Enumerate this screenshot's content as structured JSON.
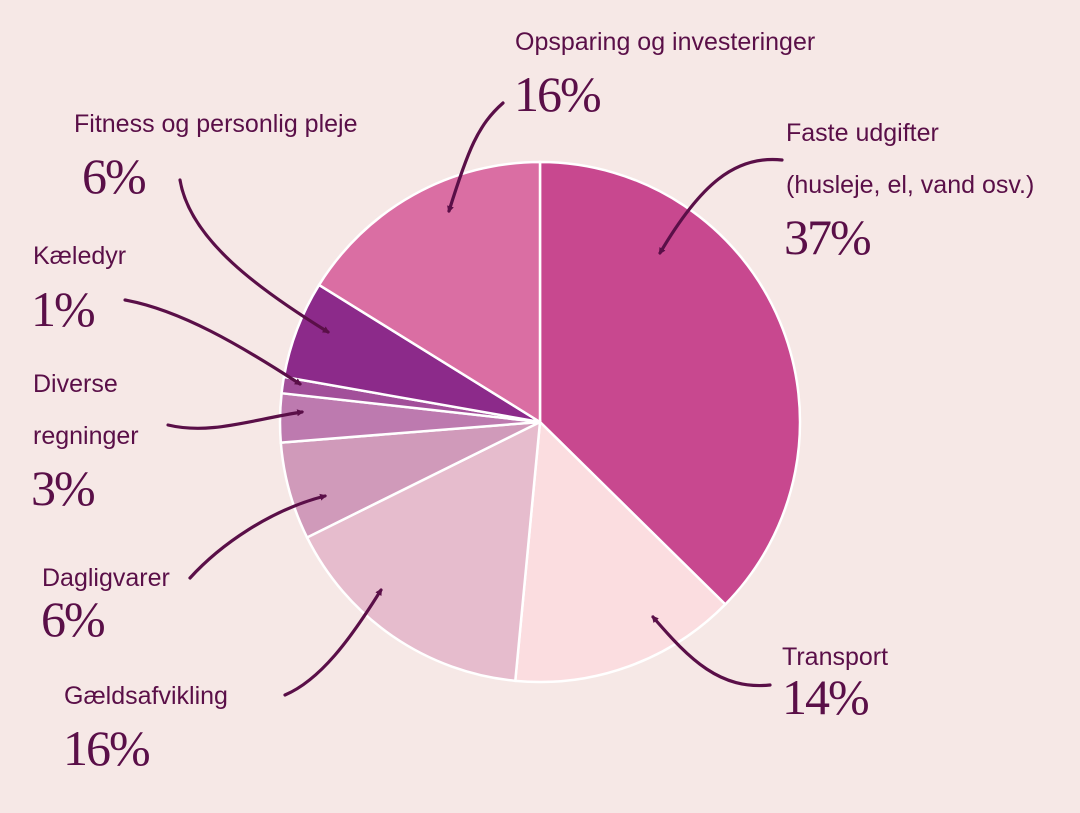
{
  "chart_data": {
    "type": "pie",
    "categories": [
      "Faste udgifter (husleje, el, vand osv.)",
      "Transport",
      "Gældsafvikling",
      "Dagligvarer",
      "Diverse regninger",
      "Kæledyr",
      "Fitness og personlig pleje",
      "Opsparing og investeringer"
    ],
    "values": [
      37,
      14,
      16,
      6,
      3,
      1,
      6,
      16
    ],
    "colors": [
      "#c8488f",
      "#fbdde0",
      "#e6bccd",
      "#d09aba",
      "#bd7aaf",
      "#a24f9a",
      "#8c2a8a",
      "#da6ea3"
    ],
    "start_angle_deg": 0,
    "direction": "clockwise"
  },
  "labels": {
    "faste_name_1": "Faste udgifter",
    "faste_name_2": "(husleje, el, vand osv.)",
    "faste_pct": "37%",
    "transport_name": "Transport",
    "transport_pct": "14%",
    "gaeld_name": "Gældsafvikling",
    "gaeld_pct": "16%",
    "dagligvarer_name": "Dagligvarer",
    "dagligvarer_pct": "6%",
    "diverse_name_1": "Diverse",
    "diverse_name_2": "regninger",
    "diverse_pct": "3%",
    "kaeledyr_name": "Kæledyr",
    "kaeledyr_pct": "1%",
    "fitness_name": "Fitness og personlig pleje",
    "fitness_pct": "6%",
    "opsparing_name": "Opsparing og investeringer",
    "opsparing_pct": "16%"
  }
}
